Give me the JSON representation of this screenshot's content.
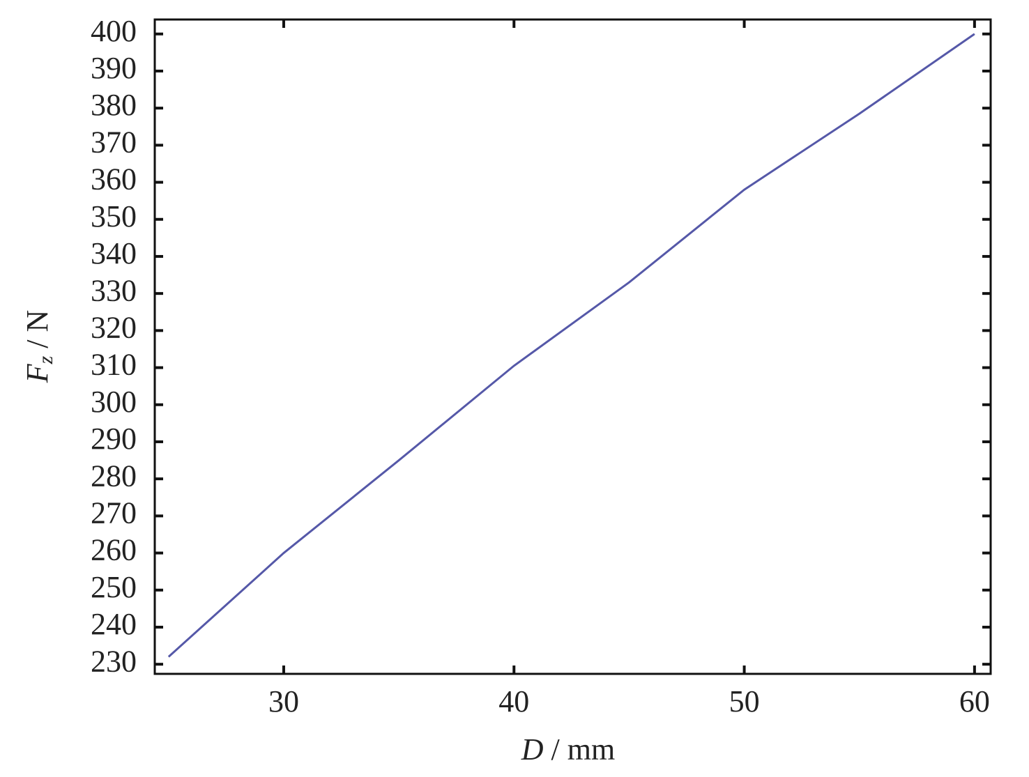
{
  "chart_data": {
    "type": "line",
    "x_label": {
      "symbol": "D",
      "unit": "/ mm"
    },
    "y_label": {
      "symbol": "F",
      "subscript": "z",
      "unit": "/ N"
    },
    "x": [
      25,
      30,
      35,
      40,
      45,
      50,
      55,
      60
    ],
    "series": [
      {
        "color": "#5558a8",
        "values": [
          232,
          260,
          285,
          310.5,
          333,
          358,
          378.5,
          400
        ]
      }
    ],
    "xlim": [
      24.4,
      60.7
    ],
    "xticks": [
      30,
      40,
      50,
      60
    ],
    "ylim": [
      227.4,
      403.9
    ],
    "yticks": [
      230,
      240,
      250,
      260,
      270,
      280,
      290,
      300,
      310,
      320,
      330,
      340,
      350,
      360,
      370,
      380,
      390,
      400
    ]
  }
}
